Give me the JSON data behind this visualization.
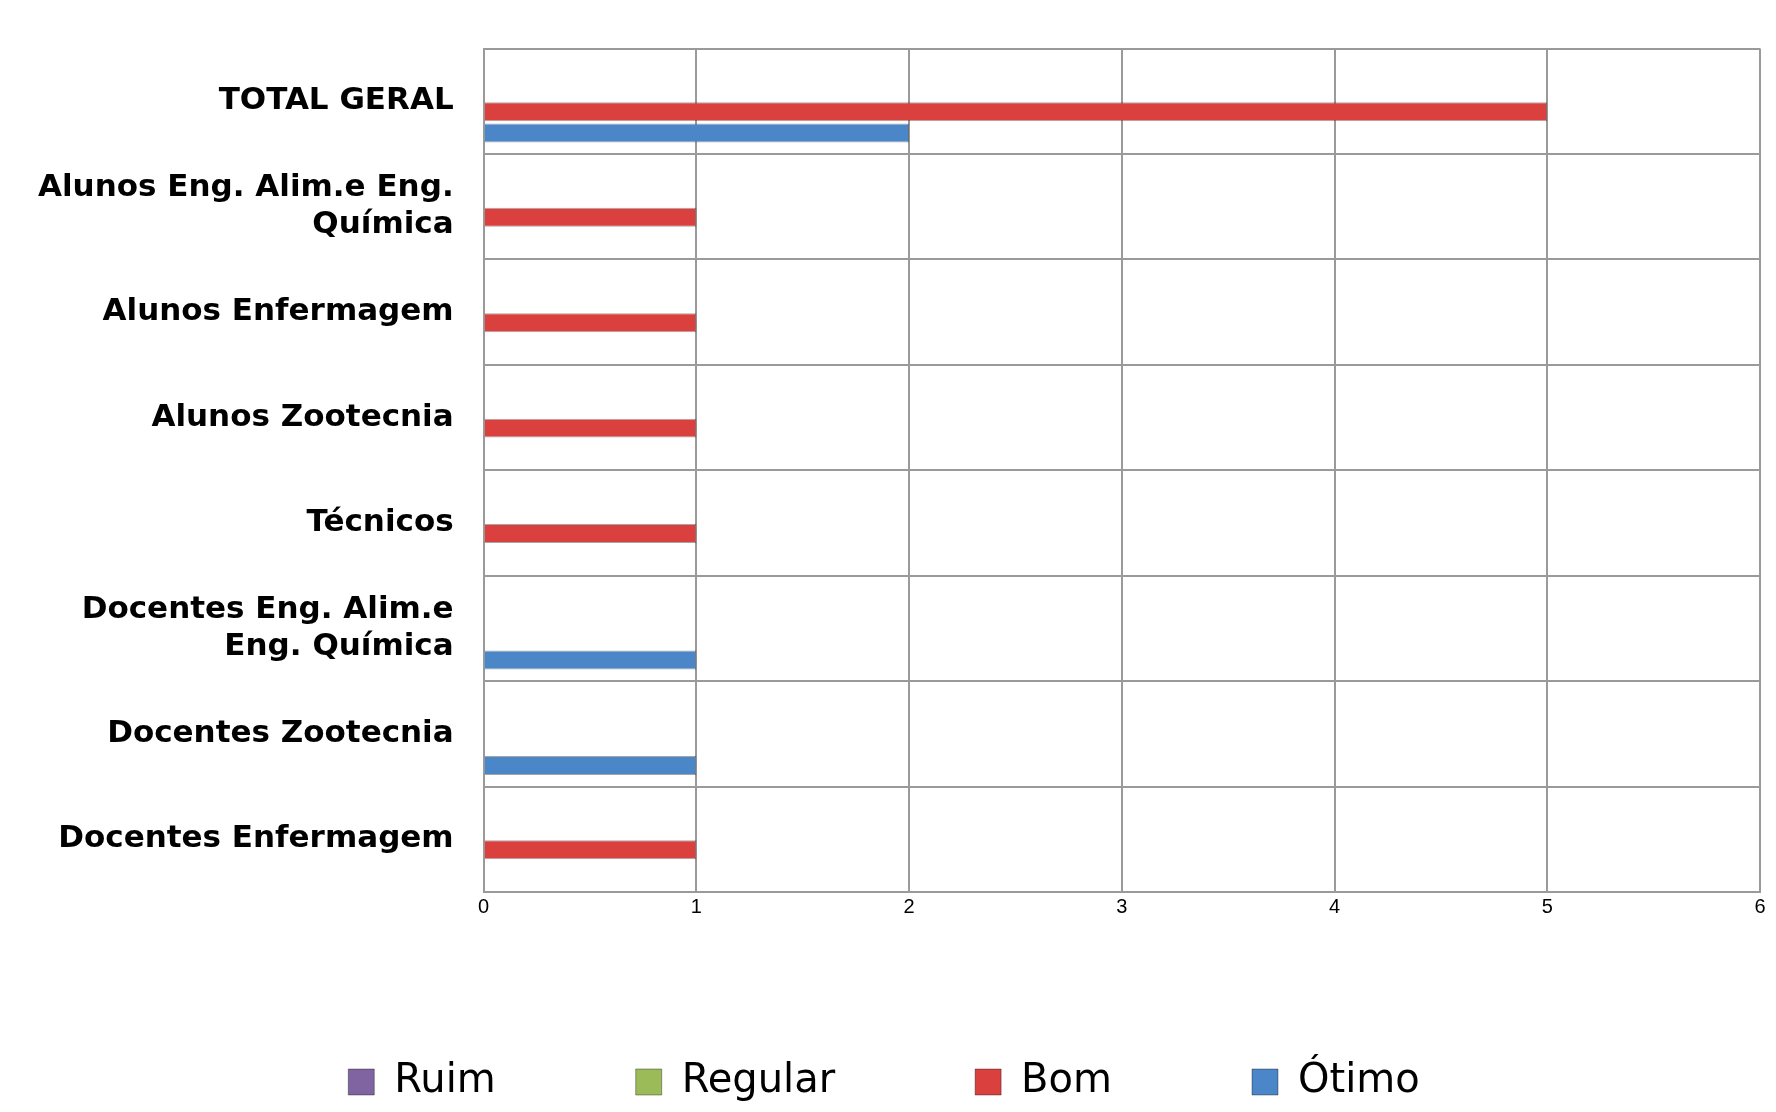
{
  "chart_data": {
    "type": "bar",
    "orientation": "horizontal",
    "categories": [
      "TOTAL GERAL",
      "Alunos Eng. Alim.e Eng. Química",
      "Alunos Enfermagem",
      "Alunos Zootecnia",
      "Técnicos",
      "Docentes Eng. Alim.e Eng. Química",
      "Docentes Zootecnia",
      "Docentes Enfermagem"
    ],
    "series": [
      {
        "name": "Ruim",
        "color": "#8064a2",
        "values": [
          0,
          0,
          0,
          0,
          0,
          0,
          0,
          0
        ]
      },
      {
        "name": "Regular",
        "color": "#9bbb59",
        "values": [
          0,
          0,
          0,
          0,
          0,
          0,
          0,
          0
        ]
      },
      {
        "name": "Bom",
        "color": "#d9403e",
        "values": [
          5,
          1,
          1,
          1,
          1,
          0,
          0,
          1
        ]
      },
      {
        "name": "Ótimo",
        "color": "#4a86c8",
        "values": [
          2,
          0,
          0,
          0,
          0,
          1,
          1,
          0
        ]
      }
    ],
    "xlim": [
      0,
      6
    ],
    "xticks": [
      0,
      1,
      2,
      3,
      4,
      5,
      6
    ],
    "grid": true,
    "legend": "bottom"
  }
}
